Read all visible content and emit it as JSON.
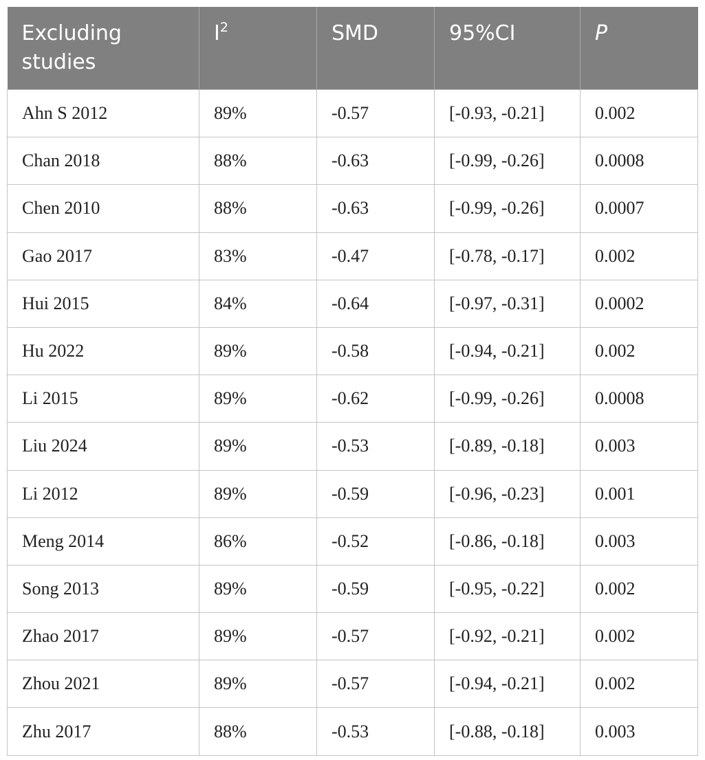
{
  "table": {
    "headers": [
      {
        "text": "Excluding studies"
      },
      {
        "text": "I",
        "sup": "2"
      },
      {
        "text": "SMD"
      },
      {
        "text": "95%CI"
      },
      {
        "text": "P",
        "italic": true
      }
    ],
    "rows": [
      [
        "Ahn S 2012",
        "89%",
        "-0.57",
        "[-0.93, -0.21]",
        "0.002"
      ],
      [
        "Chan 2018",
        "88%",
        "-0.63",
        "[-0.99, -0.26]",
        "0.0008"
      ],
      [
        "Chen 2010",
        "88%",
        "-0.63",
        "[-0.99, -0.26]",
        "0.0007"
      ],
      [
        "Gao 2017",
        "83%",
        "-0.47",
        "[-0.78, -0.17]",
        "0.002"
      ],
      [
        "Hui 2015",
        "84%",
        "-0.64",
        "[-0.97, -0.31]",
        "0.0002"
      ],
      [
        "Hu 2022",
        "89%",
        "-0.58",
        "[-0.94, -0.21]",
        "0.002"
      ],
      [
        "Li 2015",
        "89%",
        "-0.62",
        "[-0.99, -0.26]",
        "0.0008"
      ],
      [
        "Liu 2024",
        "89%",
        "-0.53",
        "[-0.89, -0.18]",
        "0.003"
      ],
      [
        "Li 2012",
        "89%",
        "-0.59",
        "[-0.96, -0.23]",
        "0.001"
      ],
      [
        "Meng 2014",
        "86%",
        "-0.52",
        "[-0.86, -0.18]",
        "0.003"
      ],
      [
        "Song 2013",
        "89%",
        "-0.59",
        "[-0.95, -0.22]",
        "0.002"
      ],
      [
        "Zhao 2017",
        "89%",
        "-0.57",
        "[-0.92, -0.21]",
        "0.002"
      ],
      [
        "Zhou 2021",
        "89%",
        "-0.57",
        "[-0.94, -0.21]",
        "0.002"
      ],
      [
        "Zhu 2017",
        "88%",
        "-0.53",
        "[-0.88, -0.18]",
        "0.003"
      ]
    ]
  },
  "colors": {
    "header_bg": "#808080",
    "header_text": "#ffffff",
    "grid": "#c4c4c4",
    "body_text": "#222222"
  }
}
